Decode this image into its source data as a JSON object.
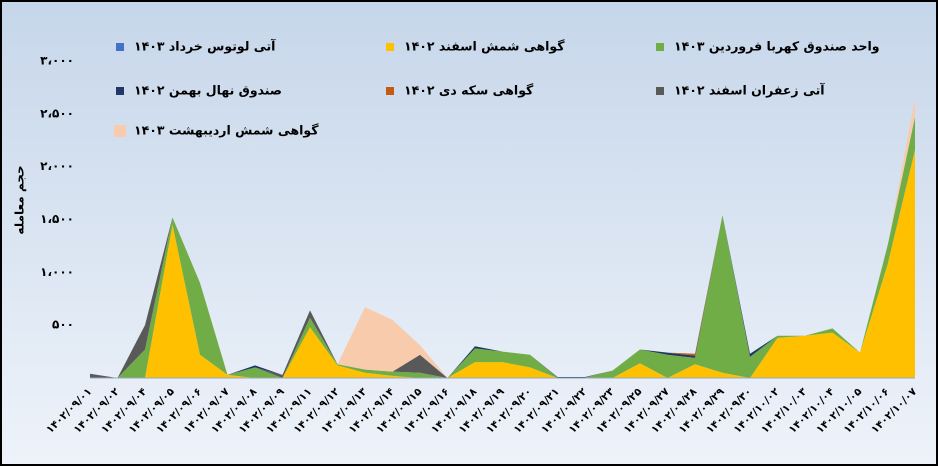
{
  "chart_data": {
    "type": "stacked-area",
    "y_label": "حجم معامله",
    "categories": [
      "۱۴۰۲/۰۹/۰۱",
      "۱۴۰۲/۰۹/۰۲",
      "۱۴۰۲/۰۹/۰۴",
      "۱۴۰۲/۰۹/۰۵",
      "۱۴۰۲/۰۹/۰۶",
      "۱۴۰۲/۰۹/۰۷",
      "۱۴۰۲/۰۹/۰۸",
      "۱۴۰۲/۰۹/۰۹",
      "۱۴۰۲/۰۹/۱۱",
      "۱۴۰۲/۰۹/۱۲",
      "۱۴۰۲/۰۹/۱۳",
      "۱۴۰۲/۰۹/۱۴",
      "۱۴۰۲/۰۹/۱۵",
      "۱۴۰۲/۰۹/۱۶",
      "۱۴۰۲/۰۹/۱۸",
      "۱۴۰۲/۰۹/۱۹",
      "۱۴۰۲/۰۹/۲۰",
      "۱۴۰۲/۰۹/۲۱",
      "۱۴۰۲/۰۹/۲۲",
      "۱۴۰۲/۰۹/۲۳",
      "۱۴۰۲/۰۹/۲۵",
      "۱۴۰۲/۰۹/۲۷",
      "۱۴۰۲/۰۹/۲۸",
      "۱۴۰۲/۰۹/۲۹",
      "۱۴۰۲/۰۹/۳۰",
      "۱۴۰۲/۱۰/۰۲",
      "۱۴۰۲/۱۰/۰۳",
      "۱۴۰۲/۱۰/۰۴",
      "۱۴۰۲/۱۰/۰۵",
      "۱۴۰۲/۱۰/۰۶",
      "۱۴۰۲/۱۰/۰۷"
    ],
    "series": [
      {
        "name": "گواهی شمش اسفند ۱۴۰۲",
        "color": "#ffc000",
        "values": [
          0,
          0,
          0,
          1450,
          220,
          30,
          0,
          0,
          480,
          120,
          50,
          20,
          0,
          0,
          150,
          150,
          100,
          0,
          0,
          0,
          140,
          0,
          130,
          50,
          0,
          380,
          400,
          430,
          240,
          1070,
          2160
        ]
      },
      {
        "name": "واحد صندوق کهربا فروردین ۱۴۰۳",
        "color": "#70ad47",
        "values": [
          0,
          0,
          270,
          70,
          680,
          0,
          100,
          0,
          90,
          10,
          30,
          40,
          50,
          0,
          130,
          100,
          120,
          5,
          5,
          70,
          130,
          220,
          60,
          1490,
          200,
          20,
          0,
          40,
          0,
          180,
          310
        ]
      },
      {
        "name": "آتی زعفران اسفند ۱۴۰۲",
        "color": "#595959",
        "values": [
          40,
          0,
          230,
          0,
          0,
          0,
          0,
          30,
          70,
          0,
          0,
          0,
          170,
          0,
          0,
          0,
          0,
          0,
          0,
          0,
          0,
          0,
          0,
          0,
          0,
          0,
          0,
          0,
          0,
          0,
          0
        ]
      },
      {
        "name": "صندوق نهال بهمن ۱۴۰۲",
        "color": "#203864",
        "values": [
          0,
          0,
          0,
          0,
          0,
          0,
          20,
          0,
          0,
          0,
          0,
          0,
          0,
          0,
          20,
          0,
          0,
          5,
          5,
          0,
          0,
          20,
          20,
          0,
          30,
          0,
          0,
          0,
          0,
          0,
          0
        ]
      },
      {
        "name": "آتی لوتوس خرداد ۱۴۰۳",
        "color": "#4472c4",
        "values": [
          0,
          0,
          0,
          0,
          0,
          0,
          0,
          0,
          0,
          0,
          0,
          0,
          0,
          0,
          0,
          0,
          0,
          0,
          0,
          0,
          0,
          0,
          0,
          0,
          0,
          0,
          0,
          0,
          0,
          0,
          0
        ]
      },
      {
        "name": "گواهی سکه دی ۱۴۰۲",
        "color": "#c55a11",
        "values": [
          0,
          0,
          0,
          0,
          0,
          0,
          0,
          0,
          0,
          0,
          0,
          0,
          0,
          0,
          0,
          0,
          0,
          0,
          0,
          0,
          0,
          0,
          20,
          0,
          0,
          0,
          0,
          0,
          0,
          0,
          0
        ]
      },
      {
        "name": "گواهی شمش اردیبهشت ۱۴۰۳",
        "color": "#f8cbad",
        "values": [
          0,
          0,
          0,
          0,
          0,
          0,
          0,
          0,
          0,
          0,
          590,
          490,
          90,
          0,
          0,
          0,
          0,
          0,
          0,
          0,
          0,
          0,
          0,
          0,
          0,
          0,
          0,
          0,
          0,
          0,
          180
        ]
      }
    ],
    "ylim": [
      0,
      3000
    ],
    "yticks": [
      {
        "value": 500,
        "label": "۵۰۰"
      },
      {
        "value": 1000,
        "label": "۱،۰۰۰"
      },
      {
        "value": 1500,
        "label": "۱،۵۰۰"
      },
      {
        "value": 2000,
        "label": "۲،۰۰۰"
      },
      {
        "value": 2500,
        "label": "۲،۵۰۰"
      },
      {
        "value": 3000,
        "label": "۳،۰۰۰"
      }
    ],
    "grid": false
  }
}
